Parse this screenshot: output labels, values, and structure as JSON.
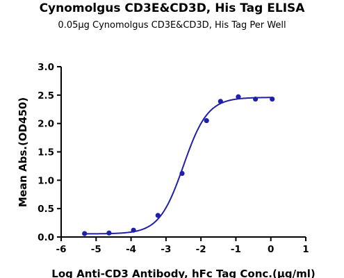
{
  "chart_data": {
    "type": "scatter",
    "title": "Cynomolgus CD3E&CD3D, His Tag ELISA",
    "subtitle": "0.05μg Cynomolgus CD3E&CD3D, His Tag Per Well",
    "xlabel": "Log Anti-CD3 Antibody, hFc Tag Conc.(μg/ml)",
    "ylabel": "Mean Abs.(OD450)",
    "xlim": [
      -6,
      1
    ],
    "ylim": [
      0,
      3.0
    ],
    "xticks": [
      -6,
      -5,
      -4,
      -3,
      -2,
      -1,
      0,
      1
    ],
    "yticks": [
      "0.0",
      "0.5",
      "1.0",
      "1.5",
      "2.0",
      "2.5",
      "3.0"
    ],
    "grid": false,
    "series": [
      {
        "x": [
          -5.33,
          -4.63,
          -3.93,
          -3.23,
          -2.54,
          -1.84,
          -1.44,
          -0.93,
          -0.44,
          0.04
        ],
        "y": [
          0.06,
          0.07,
          0.12,
          0.38,
          1.12,
          2.05,
          2.39,
          2.47,
          2.43,
          2.43
        ],
        "color": "#1f1fa8",
        "fit": {
          "model": "4PL",
          "bottom": 0.055,
          "top": 2.46,
          "logEC50": -2.5,
          "hill": 1.25
        }
      }
    ]
  }
}
